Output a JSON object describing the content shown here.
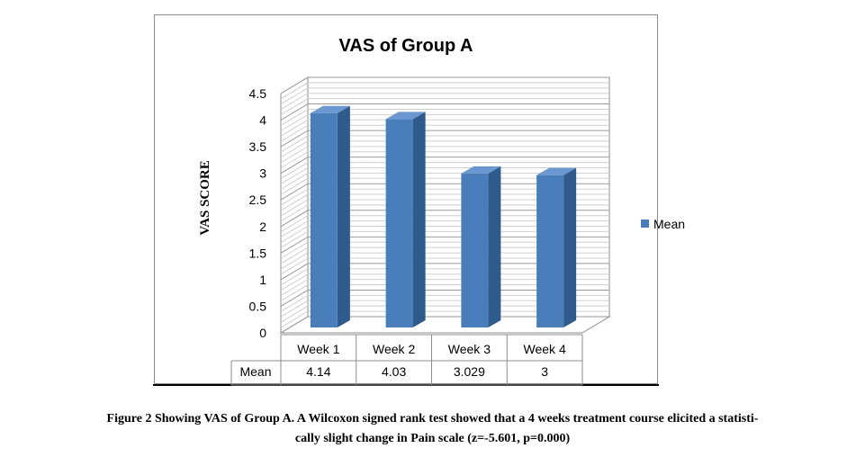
{
  "chart_data": {
    "type": "bar",
    "title": "VAS of Group A",
    "ylabel": "VAS SCORE",
    "xlabel": "",
    "categories": [
      "Week 1",
      "Week 2",
      "Week 3",
      "Week 4"
    ],
    "series": [
      {
        "name": "Mean",
        "values": [
          4.14,
          4.03,
          3.029,
          3
        ]
      }
    ],
    "data_table": {
      "row_label": "Mean",
      "values": [
        "4.14",
        "4.03",
        "3.029",
        "3"
      ]
    },
    "ylim": [
      0,
      4.5
    ],
    "y_ticks": [
      "0",
      "0.5",
      "1",
      "1.5",
      "2",
      "2.5",
      "3",
      "3.5",
      "4",
      "4.5"
    ],
    "grid": true,
    "legend": "right",
    "colors": {
      "bar_front": "#4a7ebb",
      "bar_side": "#2f5a8c",
      "bar_top": "#6b98d0",
      "grid": "#b0b0b0"
    }
  },
  "caption": {
    "line1": "Figure 2 Showing VAS of Group A. A Wilcoxon signed rank test showed that a 4 weeks treatment course elicited a statisti-",
    "line2": "cally slight change in Pain scale (z=-5.601, p=0.000)"
  }
}
